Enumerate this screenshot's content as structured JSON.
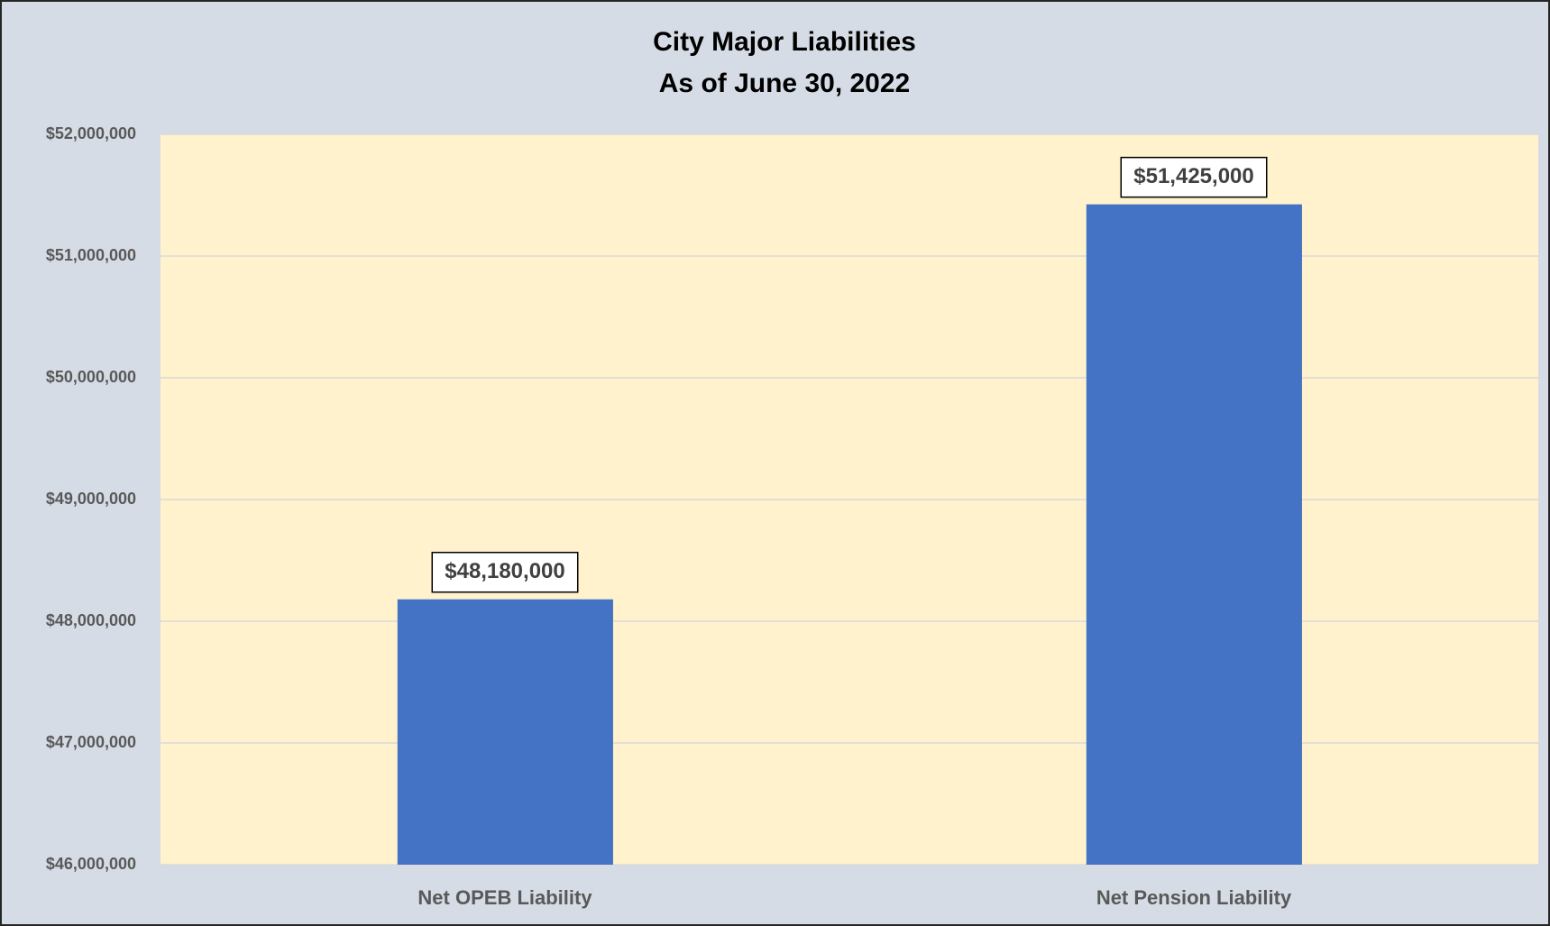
{
  "chart_data": {
    "type": "bar",
    "title": "City Major Liabilities",
    "subtitle": "As of June 30, 2022",
    "categories": [
      "Net OPEB Liability",
      "Net Pension Liability"
    ],
    "values": [
      48180000,
      51425000
    ],
    "value_labels": [
      "$48,180,000",
      "$51,425,000"
    ],
    "color": "#4472c4",
    "ylim": [
      46000000,
      52000000
    ],
    "yticks": [
      {
        "value": 46000000,
        "label": "$46,000,000"
      },
      {
        "value": 47000000,
        "label": "$47,000,000"
      },
      {
        "value": 48000000,
        "label": "$48,000,000"
      },
      {
        "value": 49000000,
        "label": "$49,000,000"
      },
      {
        "value": 50000000,
        "label": "$50,000,000"
      },
      {
        "value": 51000000,
        "label": "$51,000,000"
      },
      {
        "value": 52000000,
        "label": "$52,000,000"
      }
    ],
    "grid": true
  }
}
